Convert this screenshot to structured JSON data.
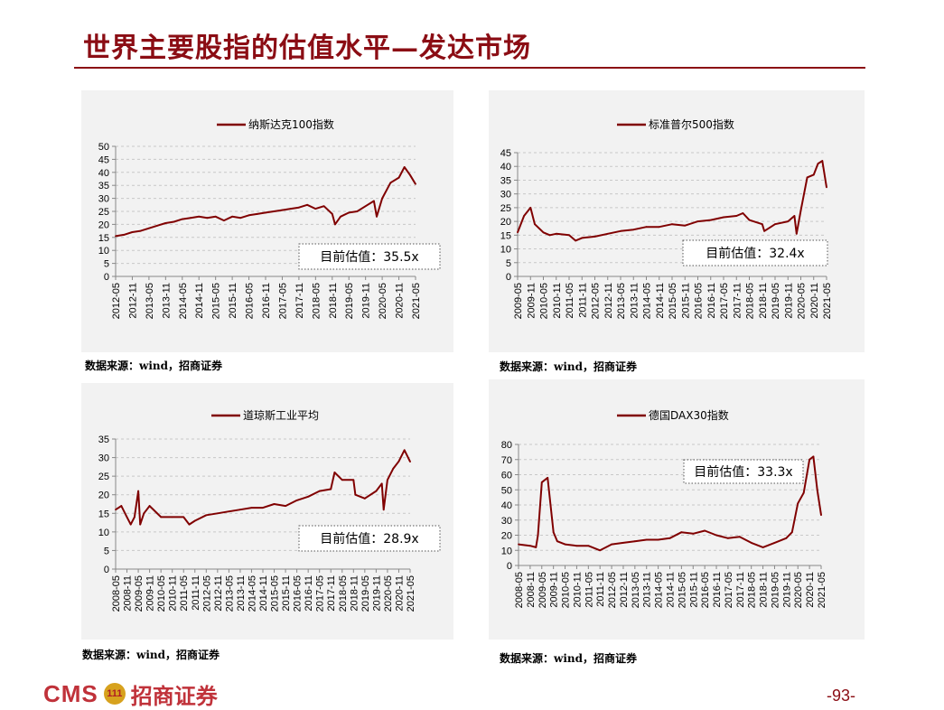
{
  "title": "世界主要股指的估值水平—发达市场",
  "page_number": "-93-",
  "footer": {
    "logo_text": "CMS",
    "logo_badge": "111",
    "company": "招商证券"
  },
  "colors": {
    "brand": "#8b0d14",
    "line": "#800000",
    "panel": "#f2f2f2"
  },
  "chart_data": [
    {
      "type": "line",
      "legend": "纳斯达克100指数",
      "annotation": "目前估值：35.5x",
      "source": "数据来源：wind，招商证券",
      "ylim": [
        0,
        50
      ],
      "yticks": [
        0,
        5,
        10,
        15,
        20,
        25,
        30,
        35,
        40,
        45,
        50
      ],
      "xticks": [
        "2012-05",
        "2012-11",
        "2013-05",
        "2013-11",
        "2014-05",
        "2014-11",
        "2015-05",
        "2015-11",
        "2016-05",
        "2016-11",
        "2017-05",
        "2017-11",
        "2018-05",
        "2018-11",
        "2019-05",
        "2019-11",
        "2020-05",
        "2020-11",
        "2021-05"
      ],
      "series": [
        {
          "x": [
            "2012-05",
            "2012-08",
            "2012-11",
            "2013-02",
            "2013-05",
            "2013-08",
            "2013-11",
            "2014-02",
            "2014-05",
            "2014-08",
            "2014-11",
            "2015-02",
            "2015-05",
            "2015-08",
            "2015-11",
            "2016-02",
            "2016-05",
            "2016-08",
            "2016-11",
            "2017-02",
            "2017-05",
            "2017-08",
            "2017-11",
            "2018-02",
            "2018-05",
            "2018-08",
            "2018-11",
            "2018-12",
            "2019-02",
            "2019-05",
            "2019-08",
            "2019-11",
            "2020-02",
            "2020-03",
            "2020-05",
            "2020-08",
            "2020-11",
            "2021-01",
            "2021-03",
            "2021-05"
          ],
          "values": [
            15.5,
            16,
            17,
            17.5,
            18.5,
            19.5,
            20.5,
            21,
            22,
            22.5,
            23,
            22.5,
            23,
            21.5,
            23,
            22.5,
            23.5,
            24,
            24.5,
            25,
            25.5,
            26,
            26.5,
            27.5,
            26,
            27,
            24,
            20,
            23,
            24.5,
            25,
            27,
            29,
            23,
            30,
            36,
            38,
            42,
            39,
            35.5
          ]
        }
      ]
    },
    {
      "type": "line",
      "legend": "标准普尔500指数",
      "annotation": "目前估值：32.4x",
      "source": "数据来源：wind，招商证券",
      "ylim": [
        0,
        45
      ],
      "yticks": [
        0,
        5,
        10,
        15,
        20,
        25,
        30,
        35,
        40,
        45
      ],
      "xticks": [
        "2009-05",
        "2009-11",
        "2010-05",
        "2010-11",
        "2011-05",
        "2011-11",
        "2012-05",
        "2012-11",
        "2013-05",
        "2013-11",
        "2014-05",
        "2014-11",
        "2015-05",
        "2015-11",
        "2016-05",
        "2016-11",
        "2017-05",
        "2017-11",
        "2018-05",
        "2018-11",
        "2019-05",
        "2019-11",
        "2020-05",
        "2020-11",
        "2021-05"
      ],
      "series": [
        {
          "x": [
            "2009-05",
            "2009-08",
            "2009-11",
            "2010-01",
            "2010-05",
            "2010-08",
            "2010-11",
            "2011-05",
            "2011-08",
            "2011-11",
            "2012-05",
            "2012-11",
            "2013-05",
            "2013-11",
            "2014-05",
            "2014-11",
            "2015-05",
            "2015-11",
            "2016-05",
            "2016-11",
            "2017-05",
            "2017-11",
            "2018-02",
            "2018-05",
            "2018-11",
            "2018-12",
            "2019-05",
            "2019-11",
            "2020-02",
            "2020-03",
            "2020-05",
            "2020-08",
            "2020-11",
            "2021-01",
            "2021-03",
            "2021-05"
          ],
          "values": [
            16,
            22,
            25,
            19,
            16,
            15,
            15.5,
            15,
            13,
            14,
            14.5,
            15.5,
            16.5,
            17,
            18,
            18,
            19,
            18.5,
            20,
            20.5,
            21.5,
            22,
            23,
            20.5,
            19,
            16.5,
            19,
            20,
            22,
            15.5,
            24,
            36,
            37,
            41,
            42,
            32.4
          ]
        }
      ]
    },
    {
      "type": "line",
      "legend": "道琼斯工业平均",
      "annotation": "目前估值：28.9x",
      "source": "数据来源：wind，招商证券",
      "ylim": [
        0,
        35
      ],
      "yticks": [
        0,
        5,
        10,
        15,
        20,
        25,
        30,
        35
      ],
      "xticks": [
        "2008-05",
        "2008-11",
        "2009-05",
        "2009-11",
        "2010-05",
        "2010-11",
        "2011-05",
        "2011-11",
        "2012-05",
        "2012-11",
        "2013-05",
        "2013-11",
        "2014-05",
        "2014-11",
        "2015-05",
        "2015-11",
        "2016-05",
        "2016-11",
        "2017-05",
        "2017-11",
        "2018-05",
        "2018-11",
        "2019-05",
        "2019-11",
        "2020-05",
        "2020-11",
        "2021-05"
      ],
      "series": [
        {
          "x": [
            "2008-05",
            "2008-08",
            "2008-11",
            "2009-01",
            "2009-03",
            "2009-05",
            "2009-06",
            "2009-08",
            "2009-11",
            "2010-05",
            "2010-11",
            "2011-05",
            "2011-08",
            "2011-11",
            "2012-05",
            "2012-11",
            "2013-05",
            "2013-11",
            "2014-05",
            "2014-11",
            "2015-05",
            "2015-11",
            "2016-05",
            "2016-11",
            "2017-05",
            "2017-11",
            "2018-01",
            "2018-05",
            "2018-11",
            "2018-12",
            "2019-05",
            "2019-11",
            "2020-02",
            "2020-03",
            "2020-05",
            "2020-08",
            "2020-11",
            "2021-02",
            "2021-05"
          ],
          "values": [
            16,
            17,
            14,
            12,
            14,
            21,
            12,
            15,
            17,
            14,
            14,
            14,
            12,
            13,
            14.5,
            15,
            15.5,
            16,
            16.5,
            16.5,
            17.5,
            17,
            18.5,
            19.5,
            21,
            21.5,
            26,
            24,
            24,
            20,
            19,
            21,
            23,
            16,
            24,
            27,
            29,
            32,
            28.9
          ]
        }
      ]
    },
    {
      "type": "line",
      "legend": "德国DAX30指数",
      "annotation": "目前估值：33.3x",
      "source": "数据来源：wind，招商证券",
      "ylim": [
        0,
        80
      ],
      "yticks": [
        0,
        10,
        20,
        30,
        40,
        50,
        60,
        70,
        80
      ],
      "xticks": [
        "2008-05",
        "2008-11",
        "2009-05",
        "2009-11",
        "2010-05",
        "2010-11",
        "2011-05",
        "2011-11",
        "2012-05",
        "2012-11",
        "2013-05",
        "2013-11",
        "2014-05",
        "2014-11",
        "2015-05",
        "2015-11",
        "2016-05",
        "2016-11",
        "2017-05",
        "2017-11",
        "2018-05",
        "2018-11",
        "2019-05",
        "2019-11",
        "2020-05",
        "2020-11",
        "2021-05"
      ],
      "series": [
        {
          "x": [
            "2008-05",
            "2008-11",
            "2009-02",
            "2009-03",
            "2009-05",
            "2009-08",
            "2009-11",
            "2010-01",
            "2010-05",
            "2010-11",
            "2011-05",
            "2011-11",
            "2012-05",
            "2012-11",
            "2013-05",
            "2013-11",
            "2014-05",
            "2014-11",
            "2015-05",
            "2015-11",
            "2016-05",
            "2016-11",
            "2017-05",
            "2017-11",
            "2018-05",
            "2018-11",
            "2019-05",
            "2019-11",
            "2020-02",
            "2020-05",
            "2020-08",
            "2020-11",
            "2021-01",
            "2021-03",
            "2021-05"
          ],
          "values": [
            14,
            13,
            12,
            20,
            55,
            58,
            22,
            16,
            14,
            13,
            13,
            10,
            14,
            15,
            16,
            17,
            17,
            18,
            22,
            21,
            23,
            20,
            18,
            19,
            15,
            12,
            15,
            18,
            22,
            41,
            48,
            70,
            72,
            50,
            33.3
          ]
        }
      ]
    }
  ]
}
